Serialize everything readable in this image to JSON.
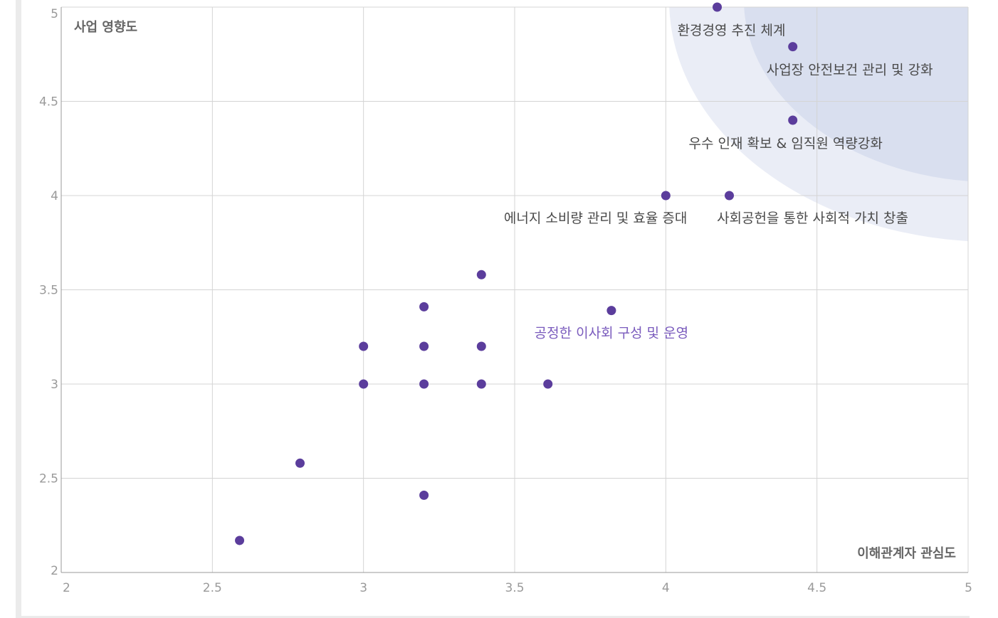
{
  "colors": {
    "point": "#5b3d9c",
    "label": "#4a4a4a",
    "label_highlight": "#7a5bbd",
    "grid": "#d4d4d4",
    "axis": "#9a9a9a",
    "zone_outer": "#eaedf6",
    "zone_inner": "#d9dfef"
  },
  "chart_data": {
    "type": "scatter",
    "xlabel": "이해관계자 관심도",
    "ylabel": "사업 영향도",
    "xlim": [
      2,
      5
    ],
    "ylim": [
      2,
      5
    ],
    "xticks": [
      "2",
      "2.5",
      "3",
      "3.5",
      "4",
      "4.5",
      "5"
    ],
    "yticks": [
      "2",
      "2.5",
      "3",
      "3.5",
      "4",
      "4.5",
      "5"
    ],
    "grid": true,
    "points": [
      {
        "x": 4.17,
        "y": 5.0,
        "label": "환경경영 추진 체계",
        "highlight": false
      },
      {
        "x": 4.42,
        "y": 4.79,
        "label": "사업장 안전보건 관리 및 강화",
        "highlight": false
      },
      {
        "x": 4.42,
        "y": 4.4,
        "label": "우수 인재 확보 & 임직원 역량강화",
        "highlight": false
      },
      {
        "x": 4.0,
        "y": 4.0,
        "label": "에너지 소비량 관리 및 효율 증대",
        "highlight": false
      },
      {
        "x": 4.21,
        "y": 4.0,
        "label": "사회공헌을 통한 사회적 가치 창출",
        "highlight": false
      },
      {
        "x": 3.39,
        "y": 3.58,
        "label": "",
        "highlight": false
      },
      {
        "x": 3.2,
        "y": 3.41,
        "label": "",
        "highlight": false
      },
      {
        "x": 3.82,
        "y": 3.39,
        "label": "공정한 이사회 구성 및 운영",
        "highlight": true
      },
      {
        "x": 3.0,
        "y": 3.2,
        "label": "",
        "highlight": false
      },
      {
        "x": 3.2,
        "y": 3.2,
        "label": "",
        "highlight": false
      },
      {
        "x": 3.39,
        "y": 3.2,
        "label": "",
        "highlight": false
      },
      {
        "x": 3.0,
        "y": 3.0,
        "label": "",
        "highlight": false
      },
      {
        "x": 3.2,
        "y": 3.0,
        "label": "",
        "highlight": false
      },
      {
        "x": 3.39,
        "y": 3.0,
        "label": "",
        "highlight": false
      },
      {
        "x": 3.61,
        "y": 3.0,
        "label": "",
        "highlight": false
      },
      {
        "x": 2.79,
        "y": 2.58,
        "label": "",
        "highlight": false
      },
      {
        "x": 3.2,
        "y": 2.41,
        "label": "",
        "highlight": false
      },
      {
        "x": 2.59,
        "y": 2.17,
        "label": "",
        "highlight": false
      }
    ]
  }
}
